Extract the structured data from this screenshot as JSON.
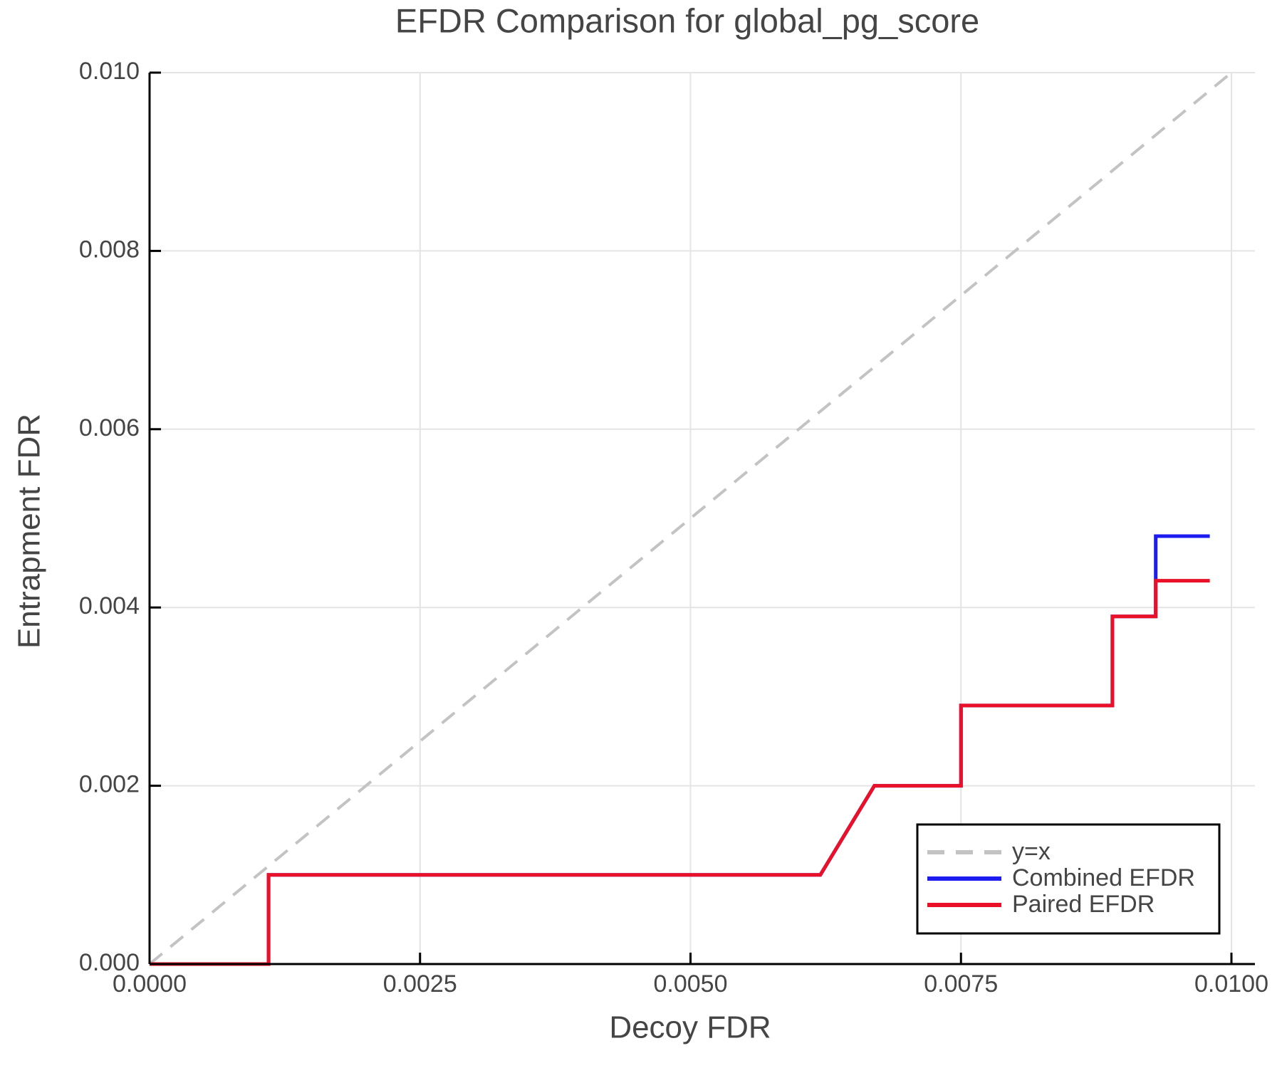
{
  "page": {
    "background": "#ffffff"
  },
  "chart_data": {
    "type": "line",
    "title": "EFDR Comparison for global_pg_score",
    "xlabel": "Decoy FDR",
    "ylabel": "Entrapment FDR",
    "xlim": [
      0.0,
      0.0102
    ],
    "ylim": [
      0.0,
      0.01
    ],
    "grid": true,
    "x_ticks": {
      "values": [
        0.0,
        0.0025,
        0.005,
        0.0075,
        0.01
      ],
      "labels": [
        "0.0000",
        "0.0025",
        "0.0050",
        "0.0075",
        "0.0100"
      ]
    },
    "y_ticks": {
      "values": [
        0.0,
        0.002,
        0.004,
        0.006,
        0.008,
        0.01
      ],
      "labels": [
        "0.000",
        "0.002",
        "0.004",
        "0.006",
        "0.008",
        "0.010"
      ]
    },
    "legend": {
      "position": "lower-right",
      "entries": [
        "y=x",
        "Combined EFDR",
        "Paired EFDR"
      ]
    },
    "series": [
      {
        "name": "y=x",
        "color": "#c3c3c3",
        "dash": true,
        "width": 4,
        "points": [
          [
            0.0,
            0.0
          ],
          [
            0.01,
            0.01
          ]
        ]
      },
      {
        "name": "Combined EFDR",
        "color": "#1c1cf0",
        "dash": false,
        "width": 5,
        "points": [
          [
            0.0,
            0.0
          ],
          [
            0.0011,
            0.0
          ],
          [
            0.0011,
            0.001
          ],
          [
            0.0062,
            0.001
          ],
          [
            0.0067,
            0.002
          ],
          [
            0.0075,
            0.002
          ],
          [
            0.0075,
            0.0029
          ],
          [
            0.0089,
            0.0029
          ],
          [
            0.0089,
            0.0039
          ],
          [
            0.0093,
            0.0039
          ],
          [
            0.0093,
            0.0048
          ],
          [
            0.0098,
            0.0048
          ]
        ]
      },
      {
        "name": "Paired EFDR",
        "color": "#ea1028",
        "dash": false,
        "width": 5,
        "points": [
          [
            0.0,
            0.0
          ],
          [
            0.0011,
            0.0
          ],
          [
            0.0011,
            0.001
          ],
          [
            0.0062,
            0.001
          ],
          [
            0.0067,
            0.002
          ],
          [
            0.0075,
            0.002
          ],
          [
            0.0075,
            0.0029
          ],
          [
            0.0089,
            0.0029
          ],
          [
            0.0089,
            0.0039
          ],
          [
            0.0093,
            0.0039
          ],
          [
            0.0093,
            0.0043
          ],
          [
            0.0098,
            0.0043
          ]
        ]
      }
    ],
    "style": {
      "text_color": "#454545",
      "grid_color": "#e4e4e4",
      "spine_color": "#000000",
      "legend_border_color": "#000000",
      "legend_background": "#ffffff"
    }
  }
}
